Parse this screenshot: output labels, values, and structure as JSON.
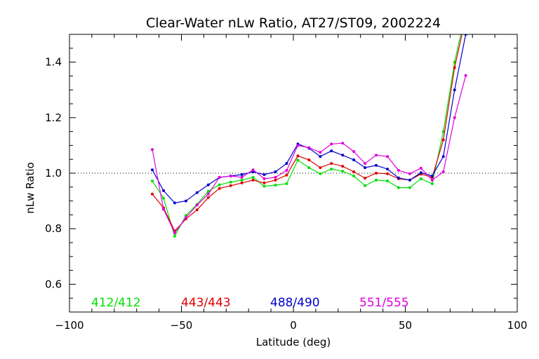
{
  "chart_data": {
    "type": "line",
    "title": "Clear-Water nLw Ratio, AT27/ST09, 2002224",
    "xlabel": "Latitude (deg)",
    "ylabel": "nLw Ratio",
    "xlim": [
      -100,
      100
    ],
    "ylim": [
      0.5,
      1.5
    ],
    "xticks": [
      -100,
      -50,
      0,
      50,
      100
    ],
    "yticks": [
      0.6,
      0.8,
      1.0,
      1.2,
      1.4
    ],
    "xtick_labels": [
      "−100",
      "−50",
      "0",
      "50",
      "100"
    ],
    "ytick_labels": [
      "0.6",
      "0.8",
      "1.0",
      "1.2",
      "1.4"
    ],
    "reference_line": 1.0,
    "legend_placement": "bottom",
    "x": [
      -63,
      -58,
      -53,
      -48,
      -43,
      -38,
      -33,
      -28,
      -23,
      -18,
      -13,
      -8,
      -3,
      2,
      7,
      12,
      17,
      22,
      27,
      32,
      37,
      42,
      47,
      52,
      57,
      62,
      67,
      72,
      77
    ],
    "series": [
      {
        "name": "412/412",
        "color": "#00e000",
        "values": [
          0.972,
          0.91,
          0.773,
          0.848,
          0.888,
          0.935,
          0.958,
          0.968,
          0.975,
          0.985,
          0.953,
          0.957,
          0.962,
          1.047,
          1.02,
          0.998,
          1.015,
          1.007,
          0.99,
          0.955,
          0.975,
          0.972,
          0.948,
          0.948,
          0.98,
          0.962,
          1.15,
          1.4,
          1.58
        ]
      },
      {
        "name": "443/443",
        "color": "#e00000",
        "values": [
          0.925,
          0.875,
          0.792,
          0.835,
          0.868,
          0.912,
          0.945,
          0.955,
          0.965,
          0.975,
          0.965,
          0.975,
          0.993,
          1.062,
          1.048,
          1.02,
          1.035,
          1.025,
          1.005,
          0.982,
          1.0,
          0.998,
          0.98,
          0.975,
          0.997,
          0.985,
          1.12,
          1.38,
          1.56
        ]
      },
      {
        "name": "488/490",
        "color": "#0000cc",
        "values": [
          1.012,
          0.937,
          0.893,
          0.9,
          0.93,
          0.958,
          0.985,
          0.99,
          0.995,
          1.005,
          0.995,
          1.005,
          1.035,
          1.105,
          1.09,
          1.06,
          1.08,
          1.065,
          1.048,
          1.02,
          1.028,
          1.015,
          0.983,
          0.975,
          1.002,
          0.99,
          1.06,
          1.3,
          1.5
        ]
      },
      {
        "name": "551/555",
        "color": "#e000e0",
        "values": [
          1.085,
          0.87,
          0.785,
          0.84,
          0.885,
          0.925,
          0.985,
          0.99,
          0.985,
          1.012,
          0.98,
          0.985,
          1.01,
          1.1,
          1.092,
          1.075,
          1.105,
          1.108,
          1.078,
          1.035,
          1.065,
          1.06,
          1.01,
          0.998,
          1.018,
          0.975,
          1.005,
          1.2,
          1.352
        ]
      }
    ]
  }
}
